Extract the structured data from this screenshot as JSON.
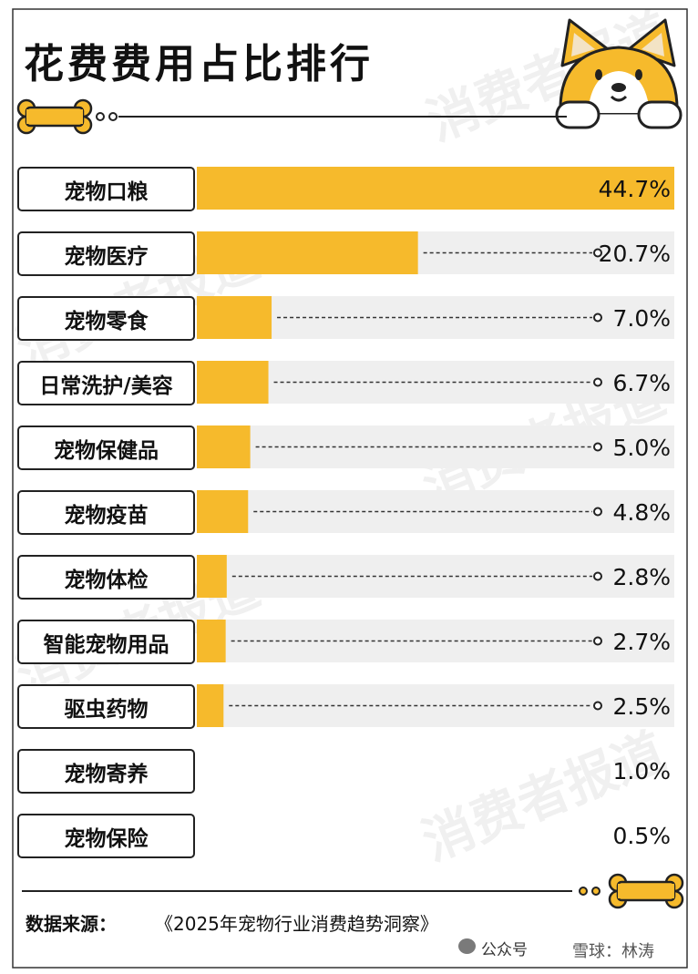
{
  "title": "花费费用占比排行",
  "watermark_text": "消费者报道",
  "colors": {
    "bar": "#F6BA2C",
    "track": "#EFEFEF",
    "border": "#222222",
    "accent": "#F6BA2C"
  },
  "chart_data": {
    "type": "bar",
    "orientation": "horizontal",
    "title": "花费费用占比排行",
    "unit": "%",
    "categories": [
      "宠物口粮",
      "宠物医疗",
      "宠物零食",
      "日常洗护/美容",
      "宠物保健品",
      "宠物疫苗",
      "宠物体检",
      "智能宠物用品",
      "驱虫药物",
      "宠物寄养",
      "宠物保险"
    ],
    "values": [
      44.7,
      20.7,
      7.0,
      6.7,
      5.0,
      4.8,
      2.8,
      2.7,
      2.5,
      1.0,
      0.5
    ],
    "value_labels": [
      "44.7%",
      "20.7%",
      "7.0%",
      "6.7%",
      "5.0%",
      "4.8%",
      "2.8%",
      "2.7%",
      "2.5%",
      "1.0%",
      "0.5%"
    ],
    "xlim": [
      0,
      44.7
    ],
    "grid": false,
    "legend": "none"
  },
  "footer": {
    "label": "数据来源：",
    "source": "《2025年宠物行业消费趋势洞察》",
    "wechat": "公众号",
    "snowball": "雪球：林涛"
  },
  "icons": [
    "dog-face-icon",
    "bone-icon",
    "wechat-icon"
  ]
}
